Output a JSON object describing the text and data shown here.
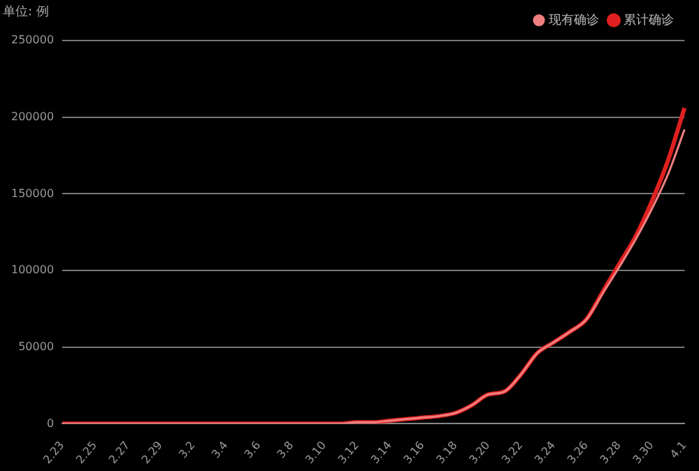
{
  "chart_data": {
    "type": "line",
    "ylabel": "单位: 例",
    "categories": [
      "2.23",
      null,
      "2.25",
      null,
      "2.27",
      null,
      "2.29",
      null,
      "3.2",
      null,
      "3.4",
      null,
      "3.6",
      null,
      "3.8",
      null,
      "3.10",
      null,
      "3.12",
      null,
      "3.14",
      null,
      "3.16",
      null,
      "3.18",
      null,
      "3.20",
      null,
      "3.22",
      null,
      "3.24",
      null,
      "3.26",
      null,
      "3.28",
      null,
      "3.30",
      null,
      "4.1"
    ],
    "series": [
      {
        "name": "现有确诊",
        "color": "#f08080",
        "values": [
          0,
          0,
          0,
          0,
          0,
          0,
          0,
          0,
          0,
          0,
          0,
          0,
          0,
          0,
          0,
          0,
          0,
          0,
          1000,
          1000,
          2000,
          3000,
          4000,
          5000,
          7000,
          12000,
          19000,
          21000,
          32000,
          46000,
          53000,
          60000,
          68000,
          85000,
          102000,
          120000,
          140000,
          163000,
          192000
        ]
      },
      {
        "name": "累计确诊",
        "color": "#e02020",
        "values": [
          0,
          0,
          0,
          0,
          0,
          0,
          0,
          0,
          0,
          0,
          0,
          0,
          0,
          0,
          0,
          0,
          0,
          0,
          1000,
          1000,
          2000,
          3000,
          4000,
          5000,
          7000,
          12000,
          19000,
          21000,
          32000,
          46000,
          53000,
          60000,
          68000,
          86000,
          104000,
          122000,
          145000,
          172000,
          206000
        ]
      }
    ],
    "ylim": [
      0,
      250000
    ],
    "yticks": [
      0,
      50000,
      100000,
      150000,
      200000,
      250000
    ],
    "grid": "y",
    "legend": "top right",
    "marker": "none",
    "line_style": "solid"
  }
}
